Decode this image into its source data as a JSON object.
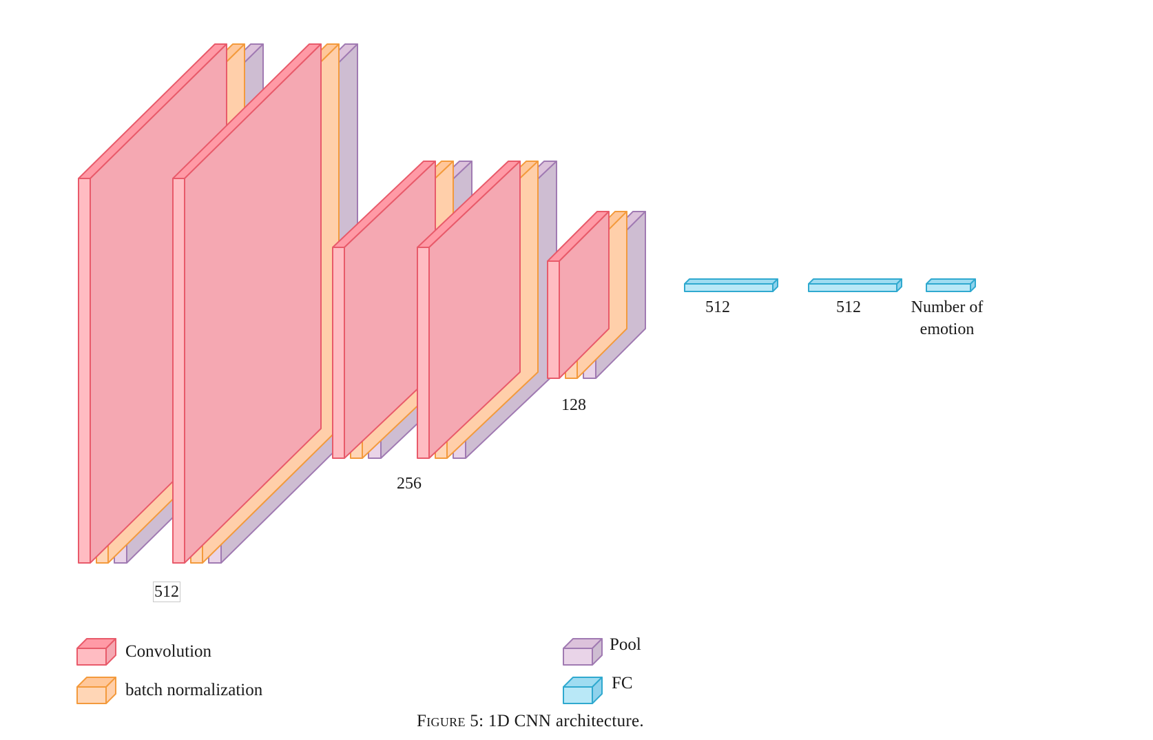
{
  "colors": {
    "conv_face": "#ffbcc2",
    "conv_top": "#ff9aa6",
    "conv_side": "#f5a8b2",
    "conv_stroke": "#e85a6a",
    "bn_face": "#ffd6b6",
    "bn_top": "#ffc79a",
    "bn_side": "#ffcfaa",
    "bn_stroke": "#f39a3c",
    "pool_face": "#e9d4e8",
    "pool_top": "#dcc2db",
    "pool_side": "#cebdd2",
    "pool_stroke": "#a07ab2",
    "fc_face": "#b9e8f7",
    "fc_top": "#9fdcf1",
    "fc_side": "#8fd2ec",
    "fc_stroke": "#2fa9cf"
  },
  "diagram": {
    "blocks": [
      {
        "name": "block1",
        "layers": [
          "conv",
          "bn",
          "pool"
        ],
        "dim_label": "512"
      },
      {
        "name": "block2",
        "layers": [
          "conv",
          "bn",
          "pool"
        ],
        "dim_label": "512"
      },
      {
        "name": "block3",
        "layers": [
          "conv",
          "bn",
          "pool"
        ],
        "dim_label": "256"
      },
      {
        "name": "block4",
        "layers": [
          "conv",
          "bn",
          "pool"
        ],
        "dim_label": "256"
      },
      {
        "name": "block5",
        "layers": [
          "conv",
          "bn",
          "pool"
        ],
        "dim_label": "128"
      }
    ],
    "fc_layers": [
      {
        "name": "fc1",
        "units": "512"
      },
      {
        "name": "fc2",
        "units": "512"
      },
      {
        "name": "fc3",
        "units_line1": "Number of",
        "units_line2": "emotion"
      }
    ],
    "labels": {
      "dim_512": "512",
      "dim_256": "256",
      "dim_128": "128"
    }
  },
  "legend": {
    "convolution": "Convolution",
    "batch_norm": "batch normalization",
    "pool": "Pool",
    "fc": "FC"
  },
  "caption": {
    "prefix": "Figure 5:",
    "text": " 1D CNN architecture."
  }
}
